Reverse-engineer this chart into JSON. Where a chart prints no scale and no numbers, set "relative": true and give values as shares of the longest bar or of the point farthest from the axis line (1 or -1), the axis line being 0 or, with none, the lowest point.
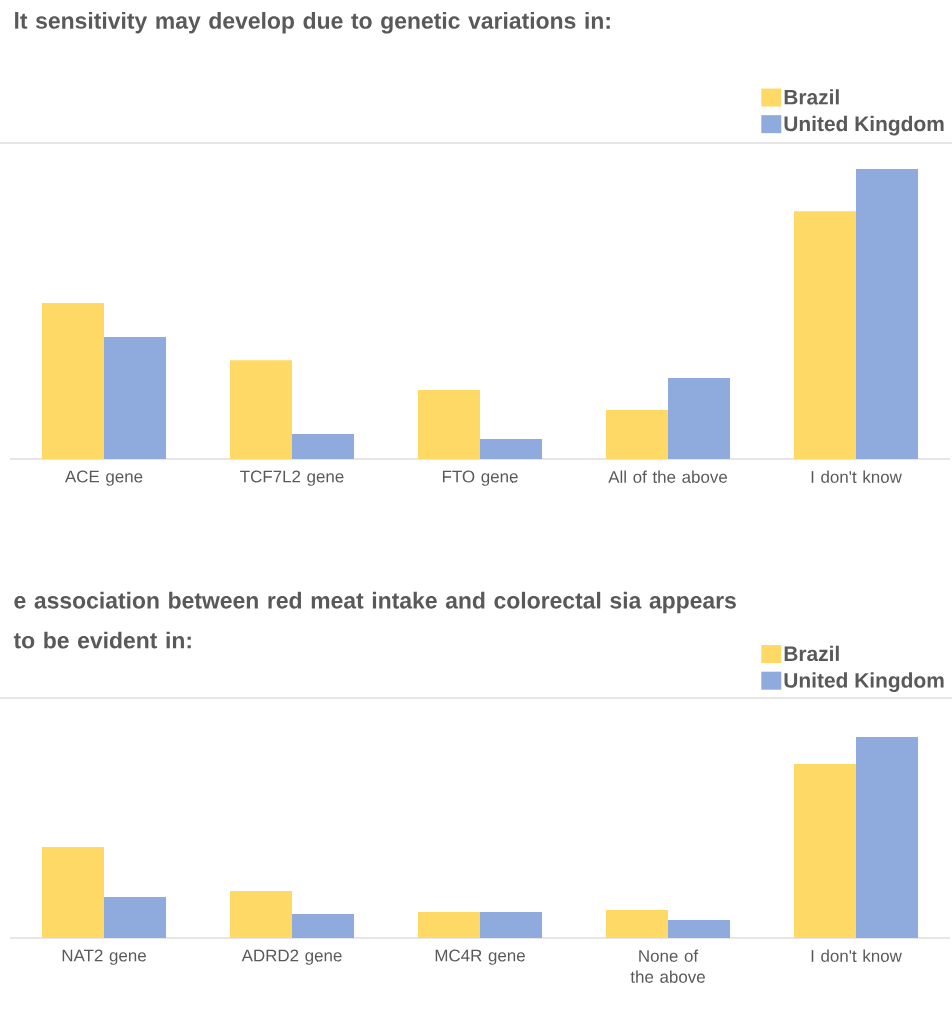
{
  "chart_data": [
    {
      "type": "bar",
      "title": "lt sensitivity may develop due to genetic variations in:",
      "relative": true,
      "legend": "top right",
      "categories": [
        "ACE gene",
        "TCF7L2 gene",
        "FTO gene",
        "All of the above",
        "I don't know"
      ],
      "series": [
        {
          "name": "Brazil",
          "color": "#ffd966",
          "values": [
            0.538,
            0.341,
            0.238,
            0.169,
            0.855
          ]
        },
        {
          "name": "United Kingdom",
          "color": "#8faadc",
          "values": [
            0.421,
            0.086,
            0.069,
            0.279,
            1
          ]
        }
      ]
    },
    {
      "type": "bar",
      "title": "e association between red meat intake and colorectal sia appears to be evident in:",
      "relative": true,
      "legend": "top right",
      "categories": [
        "NAT2 gene",
        "ADRD2 gene",
        "MC4R gene",
        "None of the above",
        "I don't know"
      ],
      "series": [
        {
          "name": "Brazil",
          "color": "#ffd966",
          "values": [
            0.453,
            0.234,
            0.129,
            0.139,
            0.866
          ]
        },
        {
          "name": "United Kingdom",
          "color": "#8faadc",
          "values": [
            0.204,
            0.119,
            0.129,
            0.09,
            1
          ]
        }
      ]
    }
  ]
}
